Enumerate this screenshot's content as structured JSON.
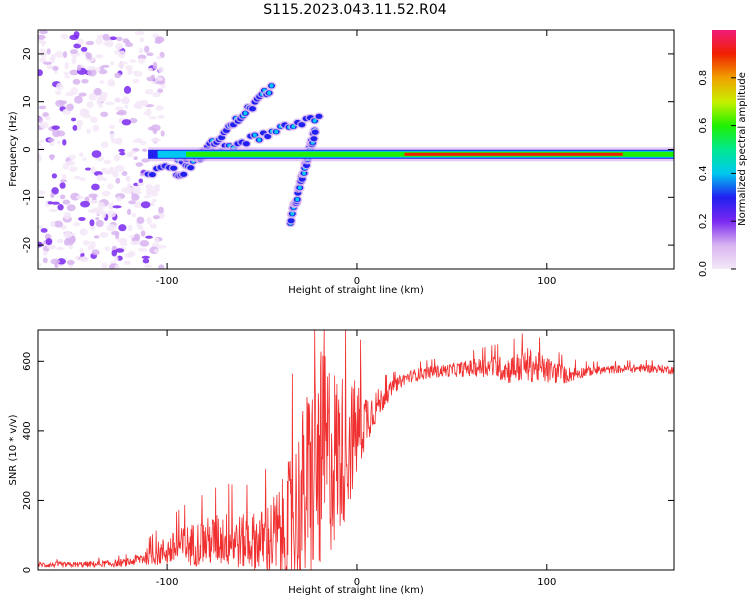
{
  "figure": {
    "title": "S115.2023.043.11.52.R04"
  },
  "chart_data": [
    {
      "type": "heatmap",
      "xlabel": "Height of straight line (km)",
      "ylabel": "Frequency (Hz)",
      "xlim": [
        -168,
        167
      ],
      "ylim": [
        -25,
        25
      ],
      "xticks": [
        -100,
        0,
        100
      ],
      "yticks": [
        -20,
        -10,
        0,
        10,
        20
      ],
      "grid": false,
      "colorbar": {
        "label": "Normalized spectral amplitude",
        "range": [
          0,
          1
        ],
        "ticks": [
          "0.0",
          "0.2",
          "0.4",
          "0.6",
          "0.8"
        ],
        "colors": [
          "#f4e8f8",
          "#d8b4f0",
          "#7a28f0",
          "#2020f0",
          "#00c8f0",
          "#00e890",
          "#20f000",
          "#c8f000",
          "#f0a000",
          "#f02000",
          "#f01a7a"
        ]
      },
      "features": {
        "noise_region_x": [
          -168,
          -110
        ],
        "main_line": {
          "x": [
            -110,
            167
          ],
          "frequency_hz": -1,
          "description_colors": "red core with green/cyan edges"
        },
        "branches": [
          {
            "x": [
              -110,
              -20
            ],
            "f_start": -5,
            "f_end": 7
          },
          {
            "x": [
              -95,
              -45
            ],
            "f_start": -6,
            "f_end": 13
          },
          {
            "x": [
              -35,
              -22
            ],
            "f_start": -15,
            "f_end": 4
          }
        ]
      }
    },
    {
      "type": "line",
      "xlabel": "Height of straight line (km)",
      "ylabel": "SNR (10 * v/v)",
      "xlim": [
        -168,
        167
      ],
      "ylim": [
        0,
        690
      ],
      "xticks": [
        -100,
        0,
        100
      ],
      "yticks": [
        0,
        200,
        400,
        600
      ],
      "grid": false,
      "series": [
        {
          "color": "#f03030",
          "x": [
            -168,
            -150,
            -130,
            -120,
            -110,
            -100,
            -90,
            -80,
            -70,
            -60,
            -50,
            -40,
            -35,
            -30,
            -25,
            -20,
            -15,
            -10,
            -5,
            0,
            5,
            10,
            15,
            20,
            25,
            30,
            40,
            50,
            60,
            70,
            80,
            90,
            100,
            110,
            120,
            130,
            140,
            150,
            160,
            167
          ],
          "y": [
            15,
            15,
            18,
            22,
            40,
            55,
            70,
            80,
            90,
            80,
            85,
            100,
            130,
            180,
            250,
            300,
            330,
            330,
            360,
            400,
            440,
            470,
            500,
            530,
            550,
            560,
            570,
            575,
            580,
            585,
            575,
            590,
            575,
            560,
            570,
            575,
            578,
            580,
            578,
            575
          ],
          "noise_amplitude": [
            8,
            8,
            10,
            12,
            25,
            45,
            60,
            70,
            80,
            80,
            90,
            150,
            200,
            260,
            300,
            330,
            300,
            250,
            200,
            150,
            80,
            50,
            30,
            20,
            18,
            18,
            18,
            20,
            25,
            30,
            40,
            50,
            40,
            25,
            15,
            12,
            12,
            12,
            12,
            12
          ]
        }
      ]
    }
  ]
}
